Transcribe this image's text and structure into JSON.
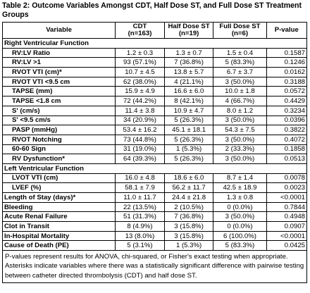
{
  "caption": "Table 2: Outcome Variables Amongst CDT, Half Dose ST, and Full Dose ST Treatment Groups",
  "columns": {
    "variable": "Variable",
    "cdt": [
      "CDT",
      "(n=163)"
    ],
    "half": [
      "Half Dose ST",
      "(n=19)"
    ],
    "full": [
      "Full Dose ST",
      "(n=6)"
    ],
    "p": "P-value"
  },
  "sections": {
    "rv": "Right Ventricular Function",
    "lv": "Left Ventricular Function"
  },
  "rows": [
    {
      "label": "RV:LV Ratio",
      "cdt": "1.2 ± 0.3",
      "half": "1.3 ± 0.7",
      "full": "1.5 ± 0.4",
      "p": "0.1587"
    },
    {
      "label": "RV:LV >1",
      "cdt": "93 (57.1%)",
      "half": "7 (36.8%)",
      "full": "5 (83.3%)",
      "p": "0.1246"
    },
    {
      "label": "RVOT VTI (cm)*",
      "cdt": "10.7 ± 4.5",
      "half": "13.8 ± 5.7",
      "full": "6.7 ± 3.7",
      "p": "0.0162"
    },
    {
      "label": "RVOT VTI <9.5 cm",
      "cdt": "62 (38.0%)",
      "half": "4 (21.1%)",
      "full": "3 (50.0%)",
      "p": "0.3188"
    },
    {
      "label": "TAPSE (mm)",
      "cdt": "15.9 ± 4.9",
      "half": "16.6 ± 6.0",
      "full": "10.0 ± 1.8",
      "p": "0.0572"
    },
    {
      "label": "TAPSE <1.8 cm",
      "cdt": "72 (44.2%)",
      "half": "8 (42.1%)",
      "full": "4 (66.7%)",
      "p": "0.4429"
    },
    {
      "label": "S' (cm/s)",
      "cdt": "11.4 ± 3.8",
      "half": "10.9 ± 4.7",
      "full": "8.0 ± 1.2",
      "p": "0.3234"
    },
    {
      "label": "S' <9.5 cm/s",
      "cdt": "34 (20.9%)",
      "half": "5 (26.3%)",
      "full": "3 (50.0%)",
      "p": "0.0396"
    },
    {
      "label": "PASP (mmHg)",
      "cdt": "53.4 ± 16.2",
      "half": "45.1 ± 18.1",
      "full": "54.3 ± 7.5",
      "p": "0.3822"
    },
    {
      "label": "RVOT Notching",
      "cdt": "73 (44.8%)",
      "half": "5 (26.3%)",
      "full": "3 (50.0%)",
      "p": "0.4072"
    },
    {
      "label": "60-60 Sign",
      "cdt": "31 (19.0%)",
      "half": "1 (5.3%)",
      "full": "2 (33.3%)",
      "p": "0.1858"
    },
    {
      "label": "RV Dysfunction*",
      "cdt": "64 (39.3%)",
      "half": "5 (26.3%)",
      "full": "3 (50.0%)",
      "p": "0.0513"
    },
    {
      "label": "LVOT VTI (cm)",
      "cdt": "16.0 ± 4.8",
      "half": "18.6 ± 6.0",
      "full": "8.7 ± 1.4",
      "p": "0.0078"
    },
    {
      "label": "LVEF (%)",
      "cdt": "58.1 ± 7.9",
      "half": "56.2 ± 11.7",
      "full": "42.5 ± 18.9",
      "p": "0.0023"
    },
    {
      "label": "Length of Stay (days)*",
      "cdt": "11.0 ± 11.7",
      "half": "24.4 ± 21.8",
      "full": "1.3 ± 0.8",
      "p": "<0.0001"
    },
    {
      "label": "Bleeding",
      "cdt": "22 (13.5%)",
      "half": "2 (10.5%)",
      "full": "0 (0.0%)",
      "p": "0.7844"
    },
    {
      "label": "Acute Renal Failure",
      "cdt": "51 (31.3%)",
      "half": "7 (36.8%)",
      "full": "3 (50.0%)",
      "p": "0.4948"
    },
    {
      "label": "Clot in Transit",
      "cdt": "8 (4.9%)",
      "half": "3 (15.8%)",
      "full": "0 (0.0%)",
      "p": "0.0907"
    },
    {
      "label": "In-Hospital Mortality",
      "cdt": "13 (8.0%)",
      "half": "3 (15.8%)",
      "full": "6 (100.0%)",
      "p": "<0.0001"
    },
    {
      "label": "Cause of Death (PE)",
      "cdt": "5 (3.1%)",
      "half": "1 (5.3%)",
      "full": "5 (83.3%)",
      "p": "0.0425"
    }
  ],
  "footnote": "P-values represent results for ANOVA, chi-squared, or Fisher's exact testing when appropriate. Asterisks indicate variables where there was a statistically significant difference with pairwise testing between catheter directed thrombolysis (CDT) and half dose ST."
}
